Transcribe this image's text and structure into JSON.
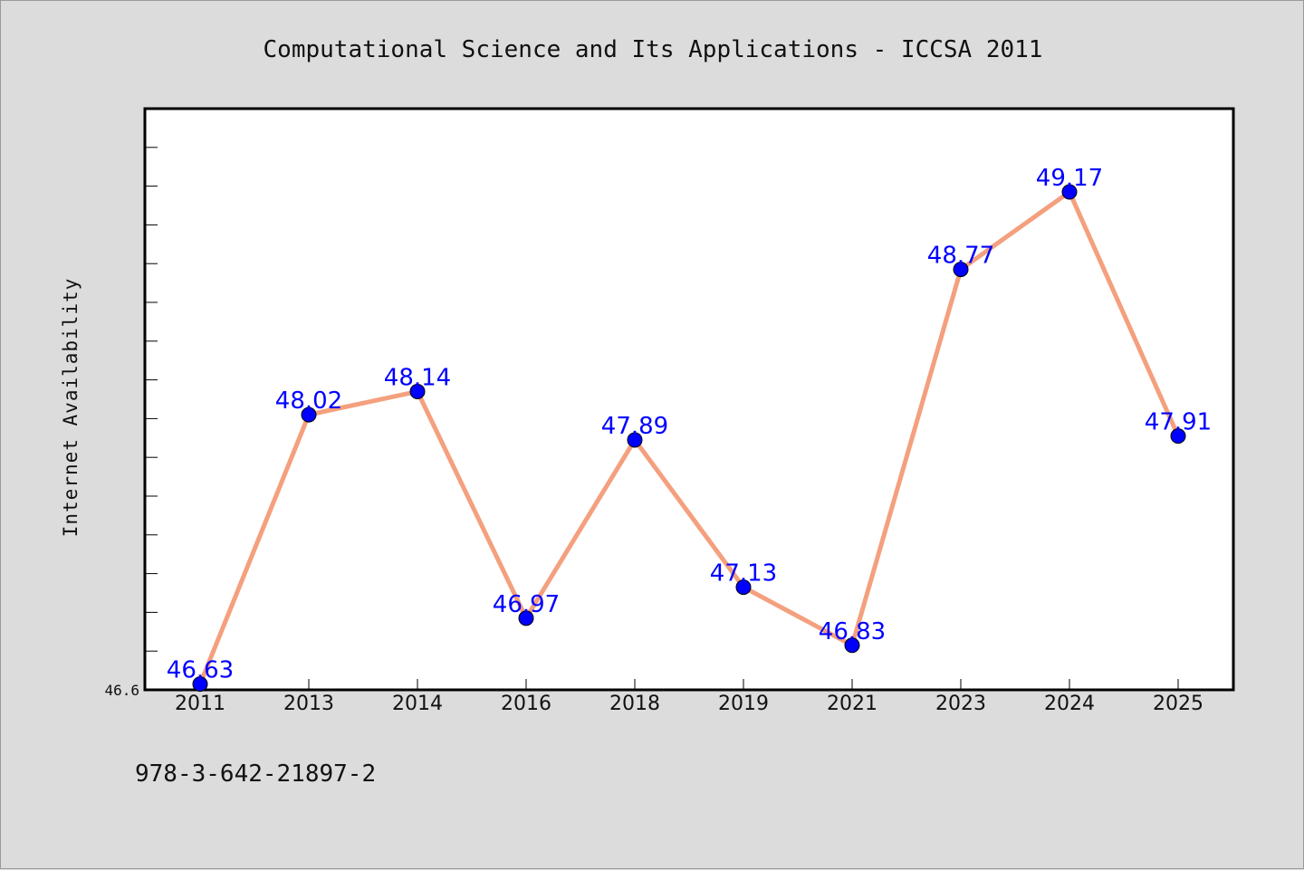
{
  "chart_data": {
    "type": "line",
    "title": "Computational Science and Its Applications - ICCSA 2011",
    "ylabel": "Internet Availability",
    "xlabel": "",
    "categories": [
      "2011",
      "2013",
      "2014",
      "2016",
      "2018",
      "2019",
      "2021",
      "2023",
      "2024",
      "2025"
    ],
    "values": [
      46.63,
      48.02,
      48.14,
      46.97,
      47.89,
      47.13,
      46.83,
      48.77,
      49.17,
      47.91
    ],
    "data_labels": [
      "46.63",
      "48.02",
      "48.14",
      "46.97",
      "47.89",
      "47.13",
      "46.83",
      "48.77",
      "49.17",
      "47.91"
    ],
    "ylim": [
      46.6,
      49.6
    ],
    "y_tick_labels": [
      {
        "value": 46.6,
        "label": "46.6"
      }
    ],
    "grid": false,
    "line_color": "#f4a07e",
    "marker_color": "#0000ff",
    "label_color": "#0000ff"
  },
  "footer": {
    "isbn": "978-3-642-21897-2"
  }
}
